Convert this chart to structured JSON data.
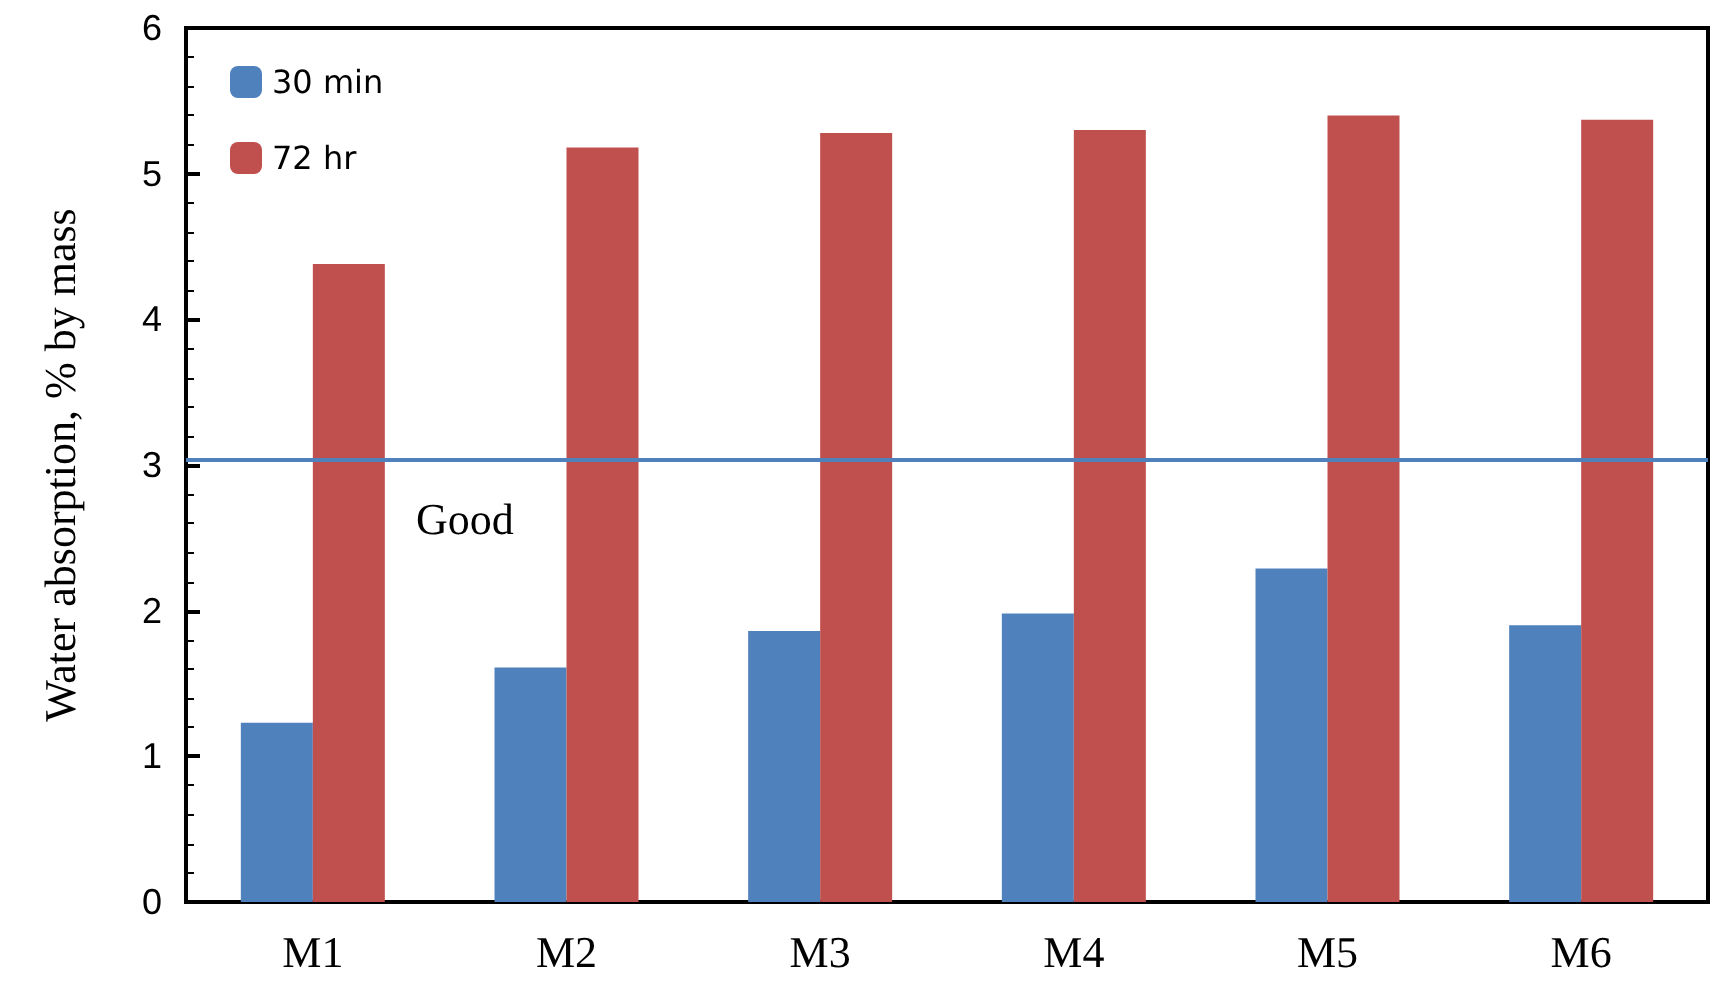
{
  "chart_data": {
    "type": "bar",
    "ylabel": "Water absorption, % by mass",
    "categories": [
      "M1",
      "M2",
      "M3",
      "M4",
      "M5",
      "M6"
    ],
    "series": [
      {
        "name": "30 min",
        "color": "#4f81bd",
        "values": [
          1.23,
          1.61,
          1.86,
          1.98,
          2.29,
          1.9
        ]
      },
      {
        "name": "72 hr",
        "color": "#c0504d",
        "values": [
          4.38,
          5.18,
          5.28,
          5.3,
          5.4,
          5.37
        ]
      }
    ],
    "ylim": [
      0,
      6
    ],
    "yticks": [
      0,
      1,
      2,
      3,
      4,
      5,
      6
    ],
    "ref_lines": [
      {
        "axis": "y",
        "value": 3.04,
        "label": "Good",
        "color": "#4f81bd"
      }
    ],
    "legend": "top left",
    "grid": false
  }
}
